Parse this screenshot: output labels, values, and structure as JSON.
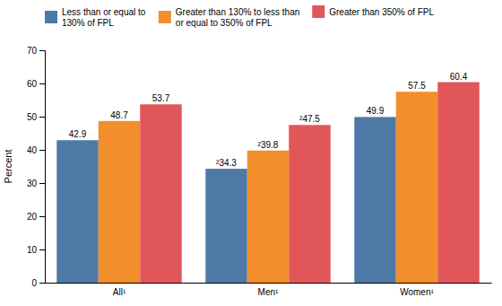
{
  "chart_data": {
    "type": "bar",
    "categories": [
      "All¹",
      "Men¹",
      "Women¹"
    ],
    "series": [
      {
        "name": "Less than or equal to\n130% of FPL",
        "values": [
          42.9,
          34.3,
          49.9
        ],
        "value_labels": [
          "42.9",
          "²34.3",
          "49.9"
        ]
      },
      {
        "name": "Greater than 130% to less than\nor equal to 350% of FPL",
        "values": [
          48.7,
          39.8,
          57.5
        ],
        "value_labels": [
          "48.7",
          "²39.8",
          "57.5"
        ]
      },
      {
        "name": "Greater than 350% of FPL",
        "values": [
          53.7,
          47.5,
          60.4
        ],
        "value_labels": [
          "53.7",
          "²47.5",
          "60.4"
        ]
      }
    ],
    "ylabel": "Percent",
    "ylim": [
      0,
      70
    ],
    "yticks": [
      0,
      10,
      20,
      30,
      40,
      50,
      60,
      70
    ],
    "grid": false,
    "legend": "top",
    "data_labels": true
  }
}
